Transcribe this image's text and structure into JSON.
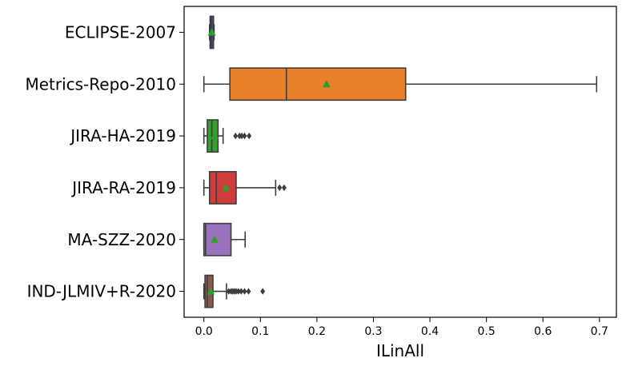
{
  "chart_data": {
    "type": "boxplot",
    "orientation": "horizontal",
    "xlabel": "ILinAll",
    "xlim": [
      -0.035,
      0.73
    ],
    "x_ticks": [
      "0.0",
      "0.1",
      "0.2",
      "0.3",
      "0.4",
      "0.5",
      "0.6",
      "0.7"
    ],
    "grid": false,
    "colors": {
      "box_edge": "#3d3d3d",
      "mean_marker": "#2ca02c"
    },
    "series": [
      {
        "name": "ECLIPSE-2007",
        "color": "#3b4f8f",
        "whisker_low": 0.01,
        "q1": 0.011,
        "median": 0.013,
        "q3": 0.017,
        "whisker_high": 0.018,
        "mean": 0.014,
        "outliers": []
      },
      {
        "name": "Metrics-Repo-2010",
        "color": "#e8812a",
        "whisker_low": 0.0,
        "q1": 0.046,
        "median": 0.146,
        "q3": 0.357,
        "whisker_high": 0.695,
        "mean": 0.217,
        "outliers": []
      },
      {
        "name": "JIRA-HA-2019",
        "color": "#33a02c",
        "whisker_low": 0.0,
        "q1": 0.006,
        "median": 0.014,
        "q3": 0.025,
        "whisker_high": 0.034,
        "mean": 0.019,
        "outliers": [
          0.056,
          0.063,
          0.067,
          0.072,
          0.08
        ]
      },
      {
        "name": "JIRA-RA-2019",
        "color": "#d13b3b",
        "whisker_low": 0.0,
        "q1": 0.01,
        "median": 0.022,
        "q3": 0.057,
        "whisker_high": 0.127,
        "mean": 0.039,
        "outliers": [
          0.134,
          0.142
        ]
      },
      {
        "name": "MA-SZZ-2020",
        "color": "#9a73bf",
        "whisker_low": 0.0,
        "q1": 0.0,
        "median": 0.003,
        "q3": 0.048,
        "whisker_high": 0.073,
        "mean": 0.019,
        "outliers": []
      },
      {
        "name": "IND-JLMIV+R-2020",
        "color": "#8c5a4a",
        "whisker_low": 0.0,
        "q1": 0.002,
        "median": 0.006,
        "q3": 0.016,
        "whisker_high": 0.04,
        "mean": 0.012,
        "outliers": [
          0.044,
          0.048,
          0.051,
          0.054,
          0.057,
          0.061,
          0.066,
          0.072,
          0.079,
          0.104
        ]
      }
    ]
  }
}
